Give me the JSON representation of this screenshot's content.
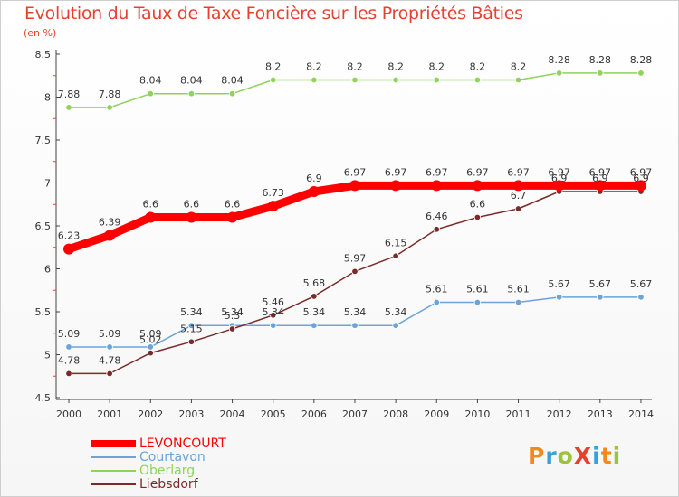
{
  "title": "Evolution du Taux de Taxe Foncière sur les Propriétés Bâties",
  "subtitle": "(en %)",
  "logo": {
    "text": "ProXiti",
    "letters": [
      "P",
      "r",
      "o",
      "X",
      "i",
      "t",
      "i"
    ],
    "colors": [
      "#f08a1c",
      "#3aa1d8",
      "#9bc43a",
      "#e6412e",
      "#3aa1d8",
      "#f08a1c",
      "#9bc43a"
    ]
  },
  "chart_data": {
    "type": "line",
    "x": [
      "2000",
      "2001",
      "2002",
      "2003",
      "2004",
      "2005",
      "2006",
      "2007",
      "2008",
      "2009",
      "2010",
      "2011",
      "2012",
      "2013",
      "2014"
    ],
    "ylim": [
      4.5,
      8.5
    ],
    "yticks": [
      "4.5",
      "5",
      "5.5",
      "6",
      "6.5",
      "7",
      "7.5",
      "8",
      "8.5"
    ],
    "grid": false,
    "legend_position": "bottom-left",
    "series": [
      {
        "name": "LEVONCOURT",
        "color": "#ff0000",
        "values": [
          6.23,
          6.39,
          6.6,
          6.6,
          6.6,
          6.73,
          6.9,
          6.97,
          6.97,
          6.97,
          6.97,
          6.97,
          6.97,
          6.97,
          6.97
        ]
      },
      {
        "name": "Courtavon",
        "color": "#6aa4d9",
        "values": [
          5.09,
          5.09,
          5.09,
          5.34,
          5.34,
          5.34,
          5.34,
          5.34,
          5.34,
          5.61,
          5.61,
          5.61,
          5.67,
          5.67,
          5.67
        ]
      },
      {
        "name": "Oberlarg",
        "color": "#8ed35a",
        "values": [
          7.88,
          7.88,
          8.04,
          8.04,
          8.04,
          8.2,
          8.2,
          8.2,
          8.2,
          8.2,
          8.2,
          8.2,
          8.28,
          8.28,
          8.28
        ]
      },
      {
        "name": "Liebsdorf",
        "color": "#7b2a2a",
        "values": [
          4.78,
          4.78,
          5.02,
          5.15,
          5.3,
          5.46,
          5.68,
          5.97,
          6.15,
          6.46,
          6.6,
          6.7,
          6.9,
          6.9,
          6.9
        ]
      }
    ],
    "data_labels": [
      [
        "6.23",
        "6.39",
        "6.6",
        "6.6",
        "6.6",
        "6.73",
        "6.9",
        "6.97",
        "6.97",
        "6.97",
        "6.97",
        "6.97",
        "6.97",
        "6.97",
        "6.97"
      ],
      [
        "5.09",
        "5.09",
        "5.09",
        "5.34",
        "5.34",
        "5.34",
        "5.34",
        "5.34",
        "5.34",
        "5.61",
        "5.61",
        "5.61",
        "5.67",
        "5.67",
        "5.67"
      ],
      [
        "7.88",
        "7.88",
        "8.04",
        "8.04",
        "8.04",
        "8.2",
        "8.2",
        "8.2",
        "8.2",
        "8.2",
        "8.2",
        "8.2",
        "8.28",
        "8.28",
        "8.28"
      ],
      [
        "4.78",
        "4.78",
        "5.02",
        "5.15",
        "5.3",
        "5.46",
        "5.68",
        "5.97",
        "6.15",
        "6.46",
        "6.6",
        "6.7",
        "6.9",
        "6.9",
        "6.9"
      ]
    ]
  }
}
